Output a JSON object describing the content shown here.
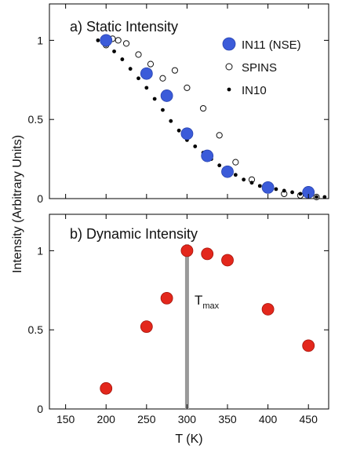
{
  "chart_data": [
    {
      "type": "scatter",
      "title": "a) Static Intensity",
      "xlim": [
        130,
        475
      ],
      "ylim": [
        0,
        1.23
      ],
      "yticks": [
        "0",
        "0.5",
        "1"
      ],
      "legend_position": "top-right",
      "series": [
        {
          "name": "IN11 (NSE)",
          "marker": "large-filled-circle",
          "color": "#3b5bd9",
          "x": [
            200,
            250,
            275,
            300,
            325,
            350,
            400,
            450
          ],
          "y": [
            1.0,
            0.79,
            0.65,
            0.41,
            0.27,
            0.17,
            0.07,
            0.04
          ]
        },
        {
          "name": "SPINS",
          "marker": "open-circle",
          "color": "#111111",
          "x": [
            200,
            208,
            215,
            225,
            240,
            255,
            270,
            285,
            300,
            320,
            340,
            360,
            380,
            400,
            420,
            440,
            460
          ],
          "y": [
            0.97,
            1.01,
            1.0,
            0.98,
            0.91,
            0.85,
            0.76,
            0.81,
            0.7,
            0.57,
            0.4,
            0.23,
            0.12,
            0.06,
            0.03,
            0.02,
            0.01
          ]
        },
        {
          "name": "IN10",
          "marker": "small-dot",
          "color": "#000000",
          "x": [
            190,
            200,
            210,
            220,
            230,
            240,
            250,
            260,
            270,
            280,
            290,
            300,
            310,
            320,
            330,
            340,
            350,
            360,
            370,
            380,
            390,
            400,
            410,
            420,
            430,
            440,
            450,
            460,
            470
          ],
          "y": [
            1.0,
            0.97,
            0.93,
            0.88,
            0.82,
            0.76,
            0.7,
            0.63,
            0.56,
            0.49,
            0.43,
            0.37,
            0.33,
            0.29,
            0.25,
            0.21,
            0.19,
            0.15,
            0.12,
            0.1,
            0.08,
            0.07,
            0.06,
            0.05,
            0.04,
            0.03,
            0.02,
            0.01,
            0.01
          ]
        }
      ]
    },
    {
      "type": "scatter",
      "title": "b) Dynamic Intensity",
      "xlabel": "T (K)",
      "xlim": [
        130,
        475
      ],
      "ylim": [
        0,
        1.23
      ],
      "xticks": [
        "150",
        "200",
        "250",
        "300",
        "350",
        "400",
        "450"
      ],
      "yticks": [
        "0",
        "0.5",
        "1"
      ],
      "series": [
        {
          "marker": "large-filled-circle",
          "color": "#e3271c",
          "x": [
            200,
            250,
            275,
            300,
            325,
            350,
            400,
            450
          ],
          "y": [
            0.13,
            0.52,
            0.7,
            1.0,
            0.98,
            0.94,
            0.63,
            0.4
          ]
        }
      ],
      "vline": {
        "x": 300,
        "color": "#999999"
      },
      "annotation": {
        "text": "T",
        "subscript": "max"
      }
    }
  ],
  "shared_ylabel": "Intensity (Arbitrary Units)"
}
